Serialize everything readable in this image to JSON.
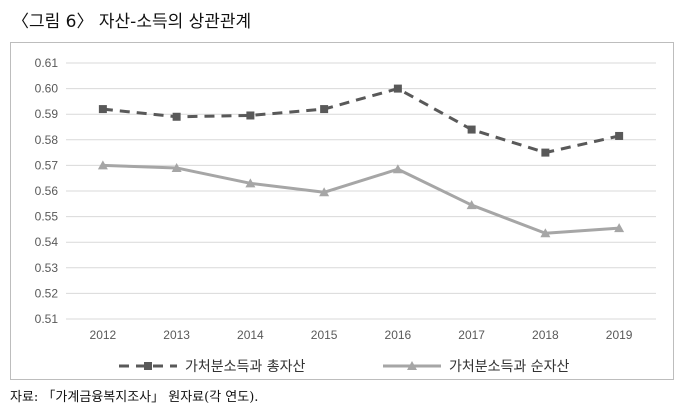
{
  "figure": {
    "title": "〈그림 6〉 자산-소득의 상관관계",
    "source": "자료: 「가계금융복지조사」 원자료(각 연도)."
  },
  "chart_data": {
    "type": "line",
    "title": "",
    "xlabel": "",
    "ylabel": "",
    "x": [
      "2012",
      "2013",
      "2014",
      "2015",
      "2016",
      "2017",
      "2018",
      "2019"
    ],
    "ylim": [
      0.51,
      0.61
    ],
    "yticks": [
      "0.51",
      "0.52",
      "0.53",
      "0.54",
      "0.55",
      "0.56",
      "0.57",
      "0.58",
      "0.59",
      "0.60",
      "0.61"
    ],
    "grid": true,
    "legend_position": "bottom",
    "series": [
      {
        "name": "가처분소득과 총자산",
        "values": [
          0.592,
          0.589,
          0.5895,
          0.592,
          0.6,
          0.584,
          0.575,
          0.5815
        ],
        "style": "dashed",
        "marker": "square",
        "color": "#595959"
      },
      {
        "name": "가처분소득과 순자산",
        "values": [
          0.57,
          0.569,
          0.563,
          0.5595,
          0.5685,
          0.5545,
          0.5435,
          0.5455
        ],
        "style": "solid",
        "marker": "triangle",
        "color": "#a6a6a6"
      }
    ],
    "colors": {
      "grid": "#d9d9d9",
      "axis_text": "#595959"
    }
  }
}
